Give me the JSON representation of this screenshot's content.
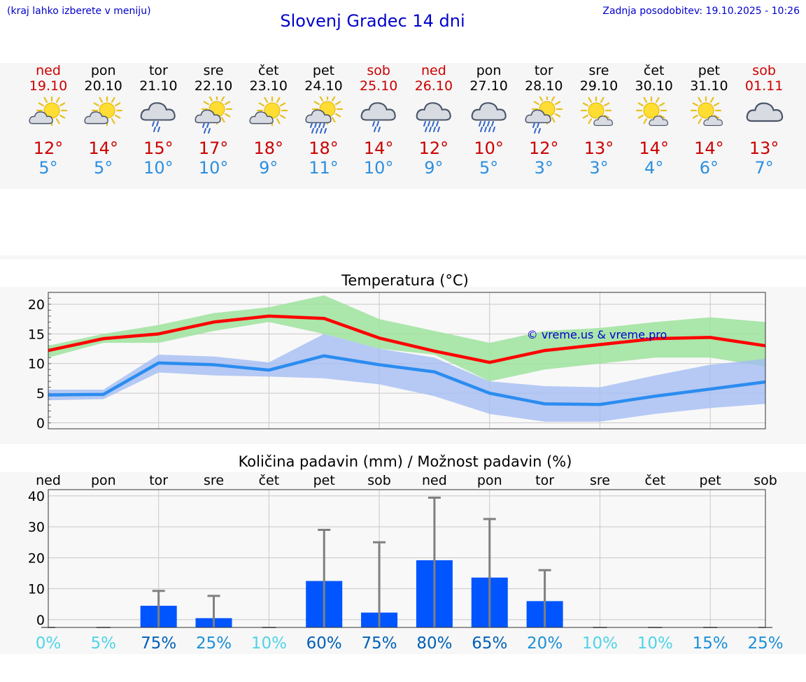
{
  "header": {
    "hint": "(kraj lahko izberete v meniju)",
    "title": "Slovenj Gradec 14 dni",
    "updated": "Zadnja posodobitev: 19.10.2025 - 10:26"
  },
  "days": [
    {
      "day": "ned",
      "date": "19.10",
      "weekend": true,
      "icon": "sun-cloud-icon",
      "tmax": "12°",
      "tmin": "5°"
    },
    {
      "day": "pon",
      "date": "20.10",
      "weekend": false,
      "icon": "sun-cloud-icon",
      "tmax": "14°",
      "tmin": "5°"
    },
    {
      "day": "tor",
      "date": "21.10",
      "weekend": false,
      "icon": "cloud-rain-icon",
      "tmax": "15°",
      "tmin": "10°"
    },
    {
      "day": "sre",
      "date": "22.10",
      "weekend": false,
      "icon": "sun-cloud-rain-icon",
      "tmax": "17°",
      "tmin": "10°"
    },
    {
      "day": "čet",
      "date": "23.10",
      "weekend": false,
      "icon": "sun-cloud-icon",
      "tmax": "18°",
      "tmin": "9°"
    },
    {
      "day": "pet",
      "date": "24.10",
      "weekend": false,
      "icon": "sun-cloud-heavy-rain-icon",
      "tmax": "18°",
      "tmin": "11°"
    },
    {
      "day": "sob",
      "date": "25.10",
      "weekend": true,
      "icon": "cloud-rain-icon",
      "tmax": "14°",
      "tmin": "10°"
    },
    {
      "day": "ned",
      "date": "26.10",
      "weekend": true,
      "icon": "cloud-heavy-rain-icon",
      "tmax": "12°",
      "tmin": "9°"
    },
    {
      "day": "pon",
      "date": "27.10",
      "weekend": false,
      "icon": "cloud-heavy-rain-icon",
      "tmax": "10°",
      "tmin": "5°"
    },
    {
      "day": "tor",
      "date": "28.10",
      "weekend": false,
      "icon": "sun-cloud-rain-icon",
      "tmax": "12°",
      "tmin": "3°"
    },
    {
      "day": "sre",
      "date": "29.10",
      "weekend": false,
      "icon": "sun-small-cloud-icon",
      "tmax": "13°",
      "tmin": "3°"
    },
    {
      "day": "čet",
      "date": "30.10",
      "weekend": false,
      "icon": "sun-small-cloud-icon",
      "tmax": "14°",
      "tmin": "4°"
    },
    {
      "day": "pet",
      "date": "31.10",
      "weekend": false,
      "icon": "sun-small-cloud-icon",
      "tmax": "14°",
      "tmin": "6°"
    },
    {
      "day": "sob",
      "date": "01.11",
      "weekend": true,
      "icon": "cloud-icon",
      "tmax": "13°",
      "tmin": "7°"
    }
  ],
  "colors": {
    "title": "#0000cc",
    "weekend": "#cc0000",
    "max_line": "#ff0000",
    "max_band": "#9de39d",
    "min_line": "#2b8cf0",
    "min_band": "#a4bdf2",
    "bar": "#0055ff",
    "whisker": "#808080",
    "prob_scale": [
      "#4fd4e8",
      "#1a90d8",
      "#0060b8"
    ]
  },
  "chart_data": [
    {
      "type": "line",
      "title": "Temperatura (°C)",
      "watermark": "© vreme.us & vreme.pro",
      "x": [
        0,
        1,
        2,
        3,
        4,
        5,
        6,
        7,
        8,
        9,
        10,
        11,
        12,
        13
      ],
      "ylim": [
        -1,
        22
      ],
      "yticks": [
        0,
        5,
        10,
        15,
        20
      ],
      "grid": true,
      "series": [
        {
          "role": "max",
          "values": [
            12.2,
            14.2,
            15.0,
            17.0,
            18.0,
            17.6,
            14.3,
            12.1,
            10.2,
            12.2,
            13.2,
            14.2,
            14.4,
            13.0
          ],
          "band_low": [
            11.0,
            13.5,
            13.5,
            15.5,
            17.0,
            15.0,
            12.5,
            11.5,
            7.0,
            9.0,
            10.0,
            11.0,
            11.0,
            9.5
          ],
          "band_high": [
            13.0,
            15.0,
            16.5,
            18.5,
            19.5,
            21.5,
            17.5,
            15.5,
            13.5,
            15.5,
            16.0,
            17.0,
            17.8,
            17.0
          ]
        },
        {
          "role": "min",
          "values": [
            4.7,
            4.8,
            10.1,
            9.8,
            8.9,
            11.3,
            9.8,
            8.6,
            5.0,
            3.2,
            3.1,
            4.5,
            5.7,
            6.9
          ],
          "band_low": [
            3.8,
            4.0,
            8.5,
            8.0,
            7.8,
            7.5,
            6.5,
            4.5,
            1.5,
            0.2,
            0.2,
            1.5,
            2.5,
            3.2
          ],
          "band_high": [
            5.6,
            5.6,
            11.5,
            11.2,
            10.2,
            15.0,
            12.5,
            11.0,
            7.0,
            6.2,
            6.0,
            8.0,
            9.8,
            10.8
          ]
        }
      ]
    },
    {
      "type": "bar",
      "title": "Količina padavin (mm) / Možnost padavin (%)",
      "categories": [
        "ned",
        "pon",
        "tor",
        "sre",
        "čet",
        "pet",
        "sob",
        "ned",
        "pon",
        "tor",
        "sre",
        "čet",
        "pet",
        "sob"
      ],
      "values": [
        0,
        0,
        4.5,
        0.5,
        0,
        12.5,
        2.3,
        19.2,
        13.6,
        6.0,
        0,
        0,
        0,
        0
      ],
      "error_high": [
        0,
        0,
        9.3,
        7.7,
        0,
        29.0,
        25.0,
        39.4,
        32.5,
        16.0,
        0,
        0,
        0,
        0
      ],
      "probability": [
        "0%",
        "5%",
        "75%",
        "25%",
        "10%",
        "60%",
        "75%",
        "80%",
        "65%",
        "20%",
        "10%",
        "10%",
        "15%",
        "25%"
      ],
      "prob_values": [
        0,
        5,
        75,
        25,
        10,
        60,
        75,
        80,
        65,
        20,
        10,
        10,
        15,
        25
      ],
      "ylim": [
        -2.5,
        42
      ],
      "yticks": [
        0,
        10,
        20,
        30,
        40
      ],
      "grid": true
    }
  ]
}
